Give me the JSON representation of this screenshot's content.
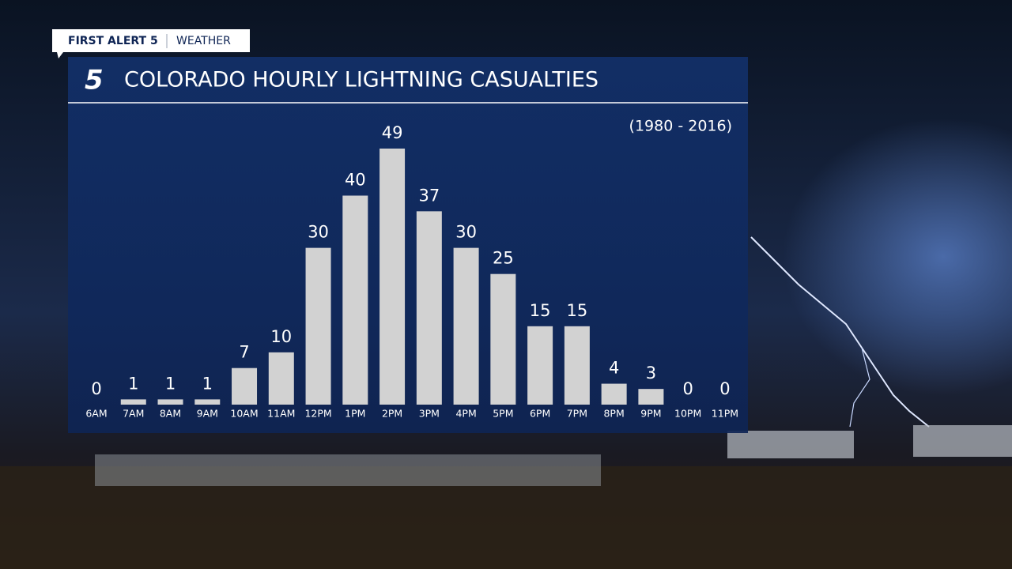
{
  "header": {
    "brand": "FIRST ALERT 5",
    "section": "WEATHER"
  },
  "logo": "5",
  "chart_data": {
    "type": "bar",
    "title": "COLORADO HOURLY LIGHTNING CASUALTIES",
    "subtitle": "(1980 - 2016)",
    "categories": [
      "6AM",
      "7AM",
      "8AM",
      "9AM",
      "10AM",
      "11AM",
      "12PM",
      "1PM",
      "2PM",
      "3PM",
      "4PM",
      "5PM",
      "6PM",
      "7PM",
      "8PM",
      "9PM",
      "10PM",
      "11PM"
    ],
    "values": [
      0,
      1,
      1,
      1,
      7,
      10,
      30,
      40,
      49,
      37,
      30,
      25,
      15,
      15,
      4,
      3,
      0,
      0
    ],
    "color": "#d2d2d2"
  }
}
